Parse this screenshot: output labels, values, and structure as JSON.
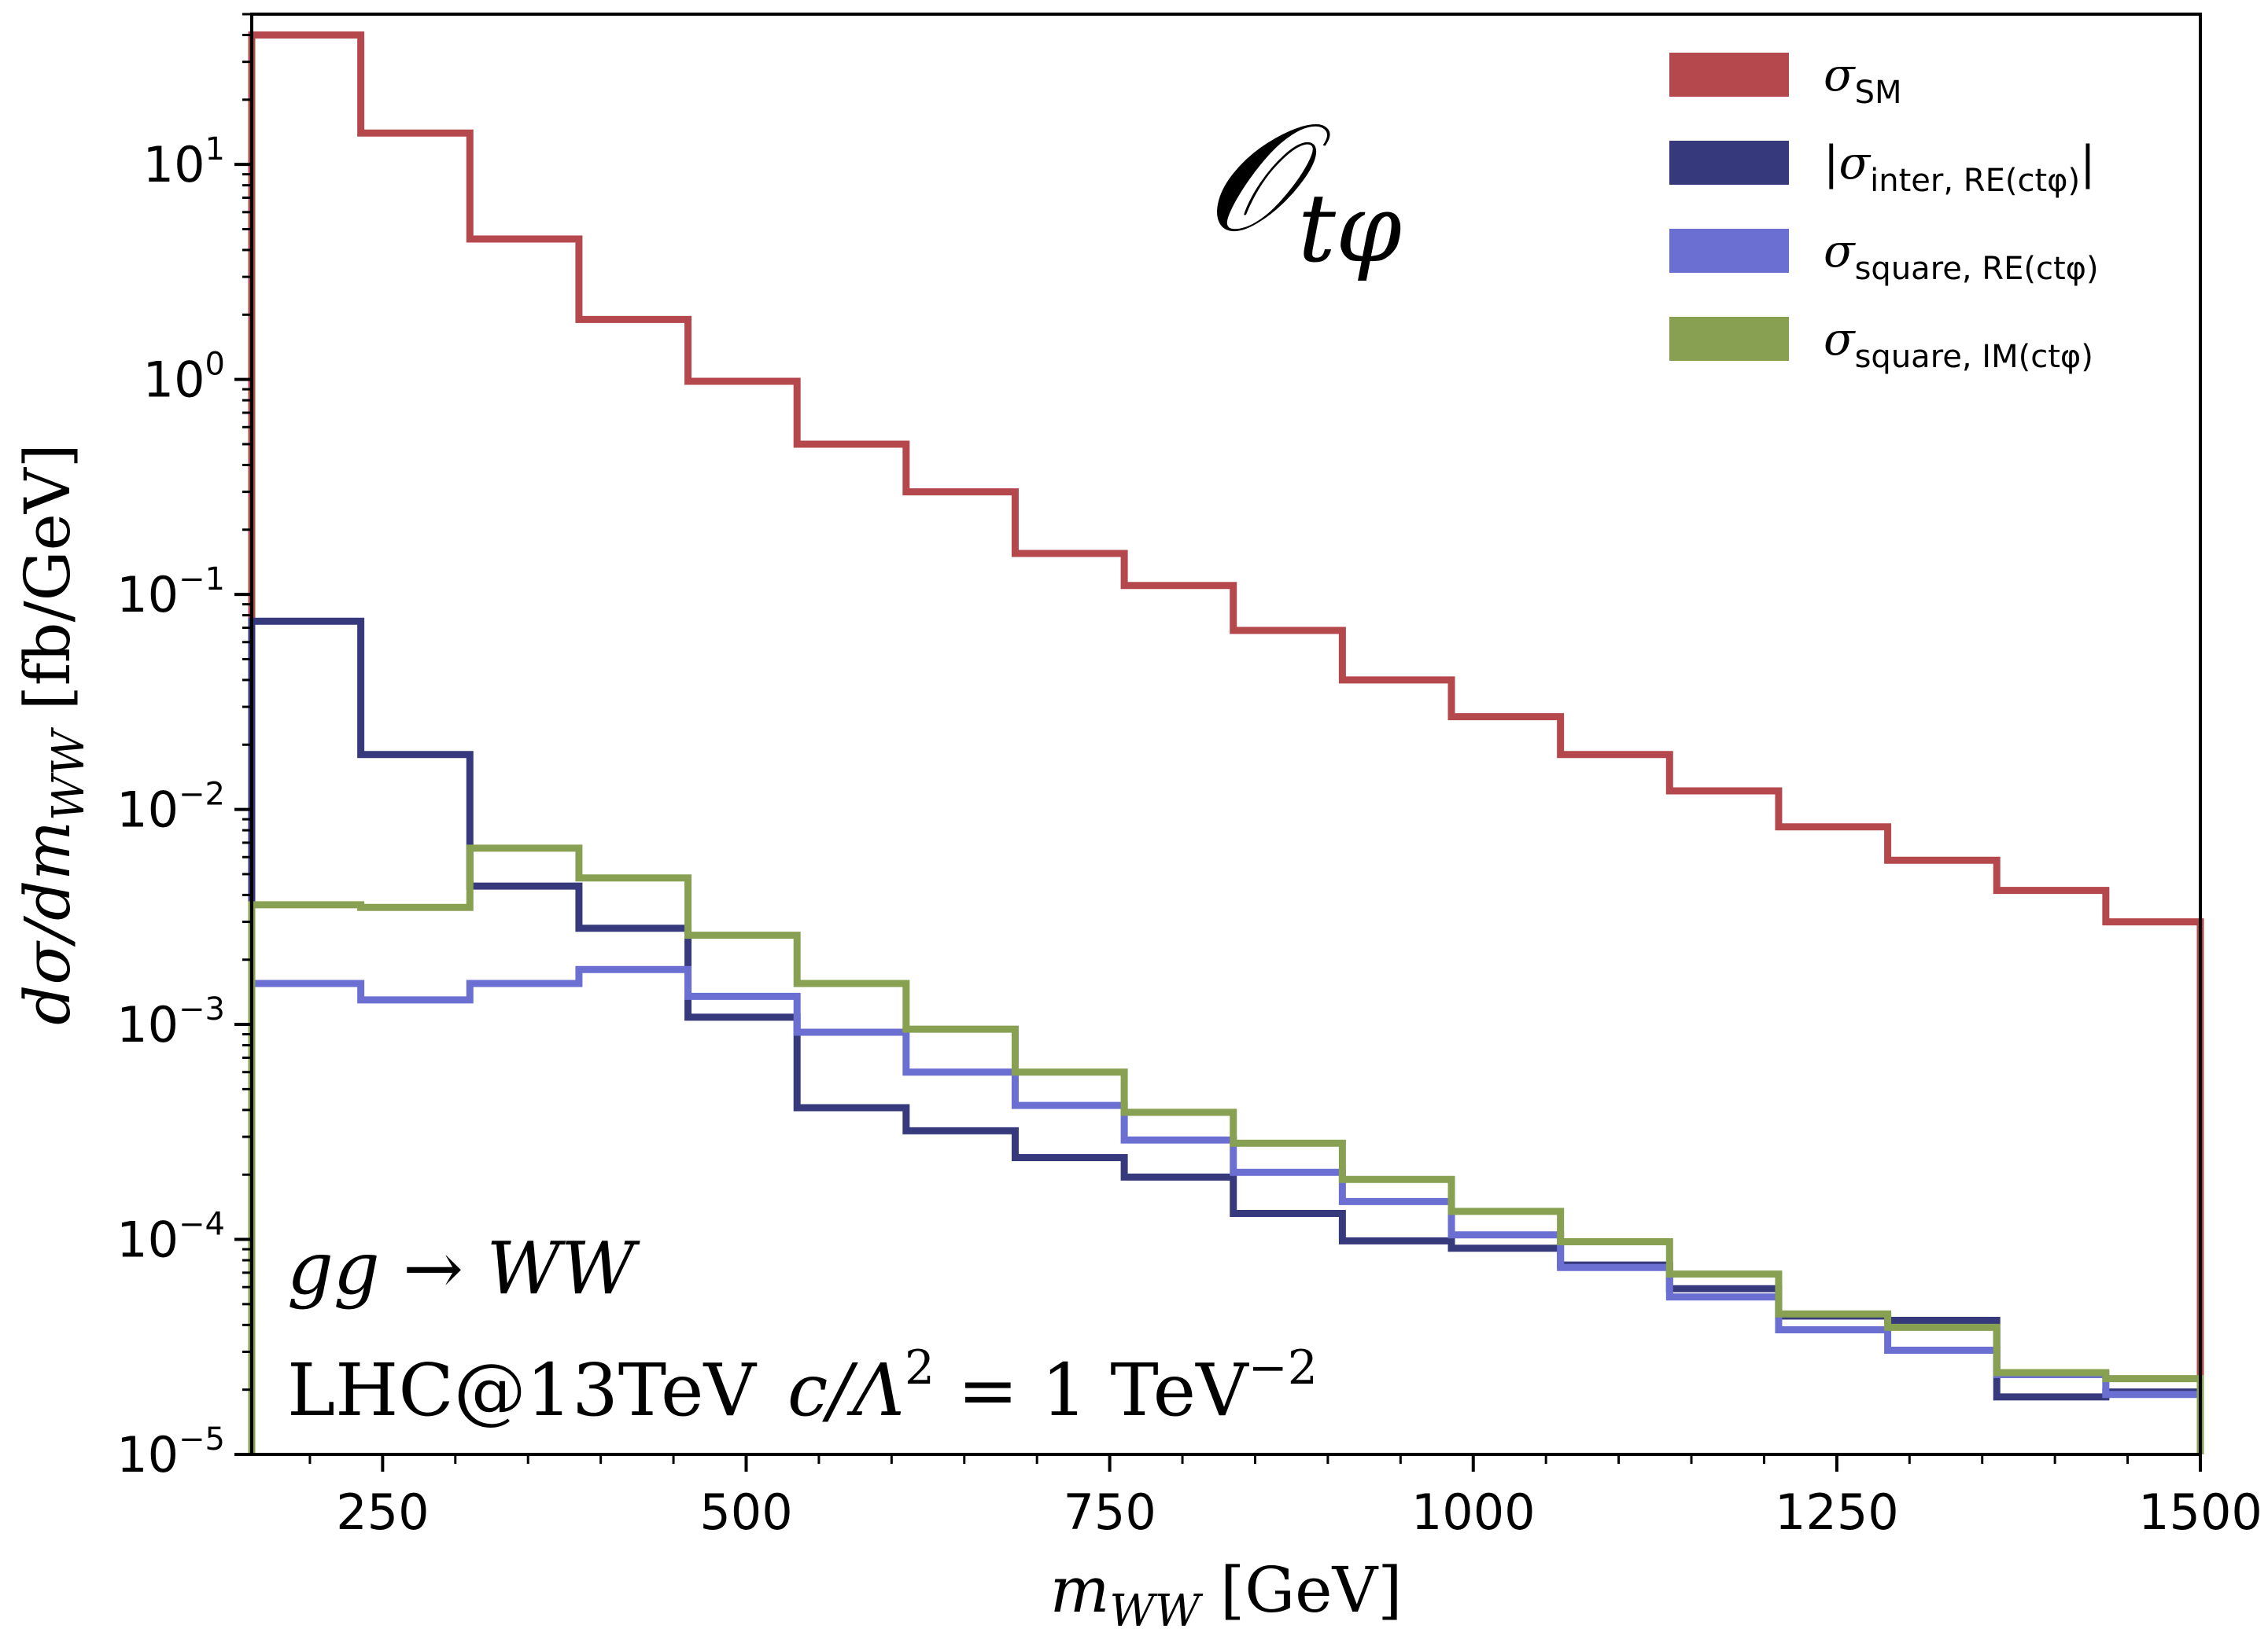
{
  "chart_data": {
    "type": "line",
    "style": "step",
    "title": "",
    "xlabel": "m_WW [GeV]",
    "ylabel": "dσ/dm_WW [fb/GeV]",
    "xscale": "linear",
    "yscale": "log",
    "xlim": [
      160,
      1500
    ],
    "ylim": [
      1e-05,
      50
    ],
    "x_ticks": [
      250,
      500,
      750,
      1000,
      1250,
      1500
    ],
    "x_tick_labels": [
      "250",
      "500",
      "750",
      "1000",
      "1250",
      "1500"
    ],
    "y_ticks": [
      {
        "value": 1e-05,
        "base": "10",
        "exp": "−5"
      },
      {
        "value": 0.0001,
        "base": "10",
        "exp": "−4"
      },
      {
        "value": 0.001,
        "base": "10",
        "exp": "−3"
      },
      {
        "value": 0.01,
        "base": "10",
        "exp": "−2"
      },
      {
        "value": 0.1,
        "base": "10",
        "exp": "−1"
      },
      {
        "value": 1,
        "base": "10",
        "exp": "0"
      },
      {
        "value": 10,
        "base": "10",
        "exp": "1"
      }
    ],
    "bin_edges": [
      160,
      235,
      310,
      385,
      460,
      535,
      610,
      685,
      760,
      835,
      910,
      985,
      1060,
      1135,
      1210,
      1285,
      1360,
      1435,
      1500
    ],
    "series": [
      {
        "name": "σSM",
        "color": "#b5484c",
        "values": [
          40,
          14,
          4.5,
          1.9,
          0.98,
          0.5,
          0.3,
          0.155,
          0.11,
          0.068,
          0.04,
          0.027,
          0.018,
          0.0122,
          0.0083,
          0.0058,
          0.0042,
          0.003
        ]
      },
      {
        "name": "|σinter, RE(ctφ)|",
        "color": "#363a7c",
        "values": [
          0.075,
          0.018,
          0.0044,
          0.0028,
          0.00108,
          0.00041,
          0.00032,
          0.00024,
          0.000195,
          0.000132,
          9.85e-05,
          9.1e-05,
          7.6e-05,
          5.9e-05,
          4.4e-05,
          4.2e-05,
          1.85e-05,
          1.95e-05
        ]
      },
      {
        "name": "σsquare, RE(ctφ)",
        "color": "#6b6fd2",
        "values": [
          0.00155,
          0.0013,
          0.00155,
          0.0018,
          0.00135,
          0.00092,
          0.0006,
          0.00042,
          0.00029,
          0.000205,
          0.00015,
          0.000105,
          7.4e-05,
          5.4e-05,
          3.8e-05,
          3.05e-05,
          2.35e-05,
          1.9e-05
        ]
      },
      {
        "name": "σsquare, IM(ctφ)",
        "color": "#87a052",
        "values": [
          0.0036,
          0.0035,
          0.0066,
          0.0048,
          0.0026,
          0.00155,
          0.00095,
          0.0006,
          0.00039,
          0.00028,
          0.00019,
          0.000135,
          9.75e-05,
          6.9e-05,
          4.5e-05,
          3.9e-05,
          2.4e-05,
          2.25e-05
        ]
      }
    ],
    "legend": [
      {
        "main": "σ",
        "sub": "SM",
        "prefix": "",
        "suffix": ""
      },
      {
        "main": "σ",
        "sub": "inter, RE(ctφ)",
        "prefix": "|",
        "suffix": "|"
      },
      {
        "main": "σ",
        "sub": "square, RE(ctφ)",
        "prefix": "",
        "suffix": ""
      },
      {
        "main": "σ",
        "sub": "square, IM(ctφ)",
        "prefix": "",
        "suffix": ""
      }
    ],
    "legend_position": "top-right",
    "annotations": {
      "operator": "𝒪",
      "operator_sub": "tφ",
      "process": "gg → WW",
      "collider": "LHC@13TeV",
      "coupling": "c/Λ",
      "coupling_exp": "2",
      "coupling_value": " = 1 TeV",
      "coupling_value_exp": "−2"
    }
  }
}
